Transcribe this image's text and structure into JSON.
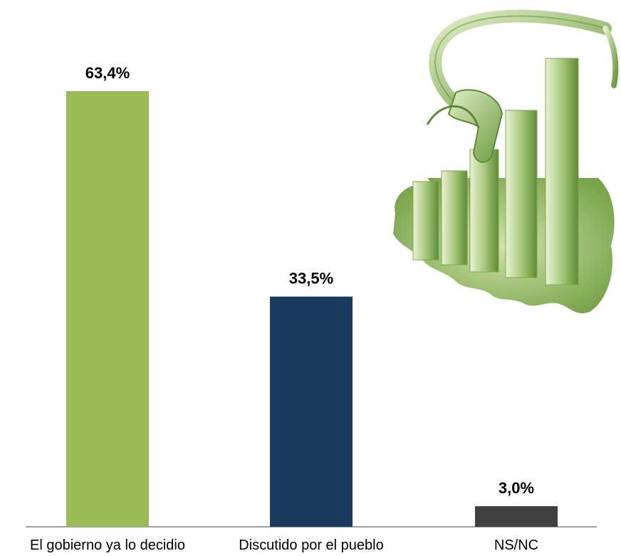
{
  "chart_data": {
    "type": "bar",
    "categories": [
      "El gobierno ya lo decidio",
      "Discutido por el pueblo",
      "NS/NC"
    ],
    "values": [
      63.4,
      33.5,
      3.0
    ],
    "value_labels": [
      "63,4%",
      "33,5%",
      "3,0%"
    ],
    "colors": [
      "#9bbb59",
      "#1a3a5e",
      "#404040"
    ],
    "title": "",
    "xlabel": "",
    "ylabel": "",
    "ylim": [
      0,
      63.4
    ],
    "grid": false,
    "legend": "none"
  },
  "decoration": {
    "icon": "fuel-pump-bar-chart-icon",
    "accent": "#7fa84a"
  }
}
